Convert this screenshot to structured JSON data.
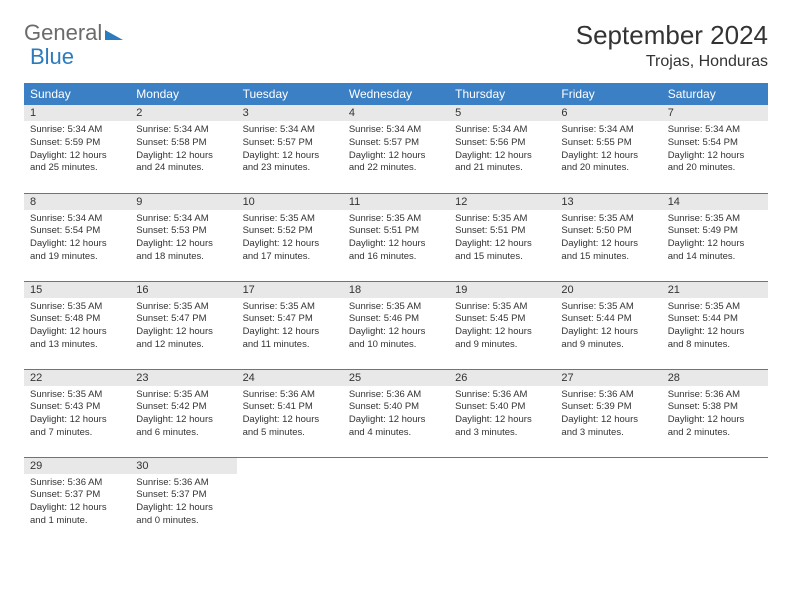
{
  "logo": {
    "part1": "General",
    "part2": "Blue"
  },
  "title": "September 2024",
  "location": "Trojas, Honduras",
  "colors": {
    "header_bg": "#3b7fc4",
    "header_text": "#ffffff",
    "daynum_bg": "#e8e8e8",
    "rule": "#3b7fc4",
    "logo_gray": "#6b6b6b",
    "logo_blue": "#2b7bbd"
  },
  "day_headers": [
    "Sunday",
    "Monday",
    "Tuesday",
    "Wednesday",
    "Thursday",
    "Friday",
    "Saturday"
  ],
  "weeks": [
    [
      {
        "n": "1",
        "sunrise": "5:34 AM",
        "sunset": "5:59 PM",
        "daylight": "12 hours and 25 minutes."
      },
      {
        "n": "2",
        "sunrise": "5:34 AM",
        "sunset": "5:58 PM",
        "daylight": "12 hours and 24 minutes."
      },
      {
        "n": "3",
        "sunrise": "5:34 AM",
        "sunset": "5:57 PM",
        "daylight": "12 hours and 23 minutes."
      },
      {
        "n": "4",
        "sunrise": "5:34 AM",
        "sunset": "5:57 PM",
        "daylight": "12 hours and 22 minutes."
      },
      {
        "n": "5",
        "sunrise": "5:34 AM",
        "sunset": "5:56 PM",
        "daylight": "12 hours and 21 minutes."
      },
      {
        "n": "6",
        "sunrise": "5:34 AM",
        "sunset": "5:55 PM",
        "daylight": "12 hours and 20 minutes."
      },
      {
        "n": "7",
        "sunrise": "5:34 AM",
        "sunset": "5:54 PM",
        "daylight": "12 hours and 20 minutes."
      }
    ],
    [
      {
        "n": "8",
        "sunrise": "5:34 AM",
        "sunset": "5:54 PM",
        "daylight": "12 hours and 19 minutes."
      },
      {
        "n": "9",
        "sunrise": "5:34 AM",
        "sunset": "5:53 PM",
        "daylight": "12 hours and 18 minutes."
      },
      {
        "n": "10",
        "sunrise": "5:35 AM",
        "sunset": "5:52 PM",
        "daylight": "12 hours and 17 minutes."
      },
      {
        "n": "11",
        "sunrise": "5:35 AM",
        "sunset": "5:51 PM",
        "daylight": "12 hours and 16 minutes."
      },
      {
        "n": "12",
        "sunrise": "5:35 AM",
        "sunset": "5:51 PM",
        "daylight": "12 hours and 15 minutes."
      },
      {
        "n": "13",
        "sunrise": "5:35 AM",
        "sunset": "5:50 PM",
        "daylight": "12 hours and 15 minutes."
      },
      {
        "n": "14",
        "sunrise": "5:35 AM",
        "sunset": "5:49 PM",
        "daylight": "12 hours and 14 minutes."
      }
    ],
    [
      {
        "n": "15",
        "sunrise": "5:35 AM",
        "sunset": "5:48 PM",
        "daylight": "12 hours and 13 minutes."
      },
      {
        "n": "16",
        "sunrise": "5:35 AM",
        "sunset": "5:47 PM",
        "daylight": "12 hours and 12 minutes."
      },
      {
        "n": "17",
        "sunrise": "5:35 AM",
        "sunset": "5:47 PM",
        "daylight": "12 hours and 11 minutes."
      },
      {
        "n": "18",
        "sunrise": "5:35 AM",
        "sunset": "5:46 PM",
        "daylight": "12 hours and 10 minutes."
      },
      {
        "n": "19",
        "sunrise": "5:35 AM",
        "sunset": "5:45 PM",
        "daylight": "12 hours and 9 minutes."
      },
      {
        "n": "20",
        "sunrise": "5:35 AM",
        "sunset": "5:44 PM",
        "daylight": "12 hours and 9 minutes."
      },
      {
        "n": "21",
        "sunrise": "5:35 AM",
        "sunset": "5:44 PM",
        "daylight": "12 hours and 8 minutes."
      }
    ],
    [
      {
        "n": "22",
        "sunrise": "5:35 AM",
        "sunset": "5:43 PM",
        "daylight": "12 hours and 7 minutes."
      },
      {
        "n": "23",
        "sunrise": "5:35 AM",
        "sunset": "5:42 PM",
        "daylight": "12 hours and 6 minutes."
      },
      {
        "n": "24",
        "sunrise": "5:36 AM",
        "sunset": "5:41 PM",
        "daylight": "12 hours and 5 minutes."
      },
      {
        "n": "25",
        "sunrise": "5:36 AM",
        "sunset": "5:40 PM",
        "daylight": "12 hours and 4 minutes."
      },
      {
        "n": "26",
        "sunrise": "5:36 AM",
        "sunset": "5:40 PM",
        "daylight": "12 hours and 3 minutes."
      },
      {
        "n": "27",
        "sunrise": "5:36 AM",
        "sunset": "5:39 PM",
        "daylight": "12 hours and 3 minutes."
      },
      {
        "n": "28",
        "sunrise": "5:36 AM",
        "sunset": "5:38 PM",
        "daylight": "12 hours and 2 minutes."
      }
    ],
    [
      {
        "n": "29",
        "sunrise": "5:36 AM",
        "sunset": "5:37 PM",
        "daylight": "12 hours and 1 minute."
      },
      {
        "n": "30",
        "sunrise": "5:36 AM",
        "sunset": "5:37 PM",
        "daylight": "12 hours and 0 minutes."
      },
      null,
      null,
      null,
      null,
      null
    ]
  ],
  "labels": {
    "sunrise": "Sunrise:",
    "sunset": "Sunset:",
    "daylight": "Daylight:"
  }
}
